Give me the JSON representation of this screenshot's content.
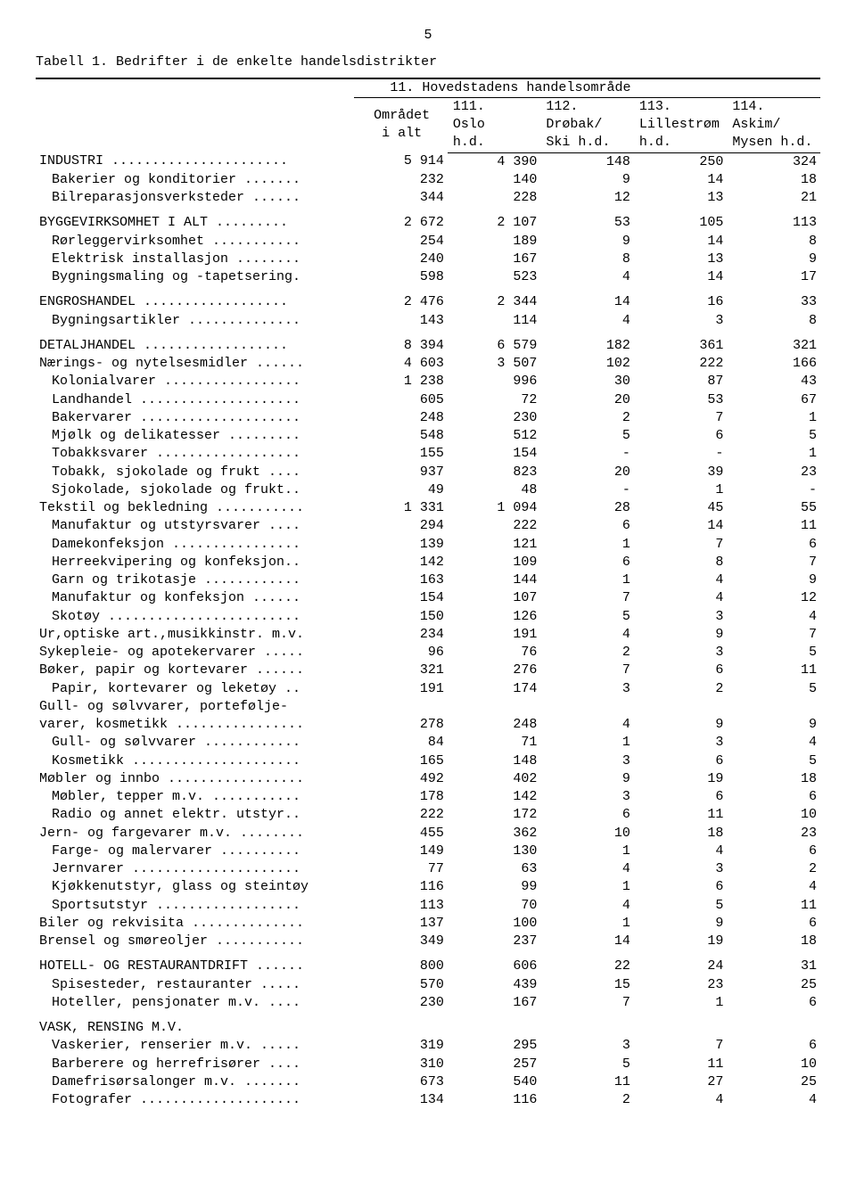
{
  "page_number": "5",
  "title": "Tabell 1.  Bedrifter i de enkelte handelsdistrikter",
  "header": {
    "super": "11.  Hovedstadens handelsområde",
    "col0": [
      "Området",
      "i alt"
    ],
    "col1": [
      "111.",
      "Oslo",
      "h.d."
    ],
    "col2": [
      "112.",
      "Drøbak/",
      "Ski h.d."
    ],
    "col3": [
      "113.",
      "Lillestrøm",
      "h.d."
    ],
    "col4": [
      "114.",
      "Askim/",
      "Mysen h.d."
    ]
  },
  "rows": [
    {
      "label": "INDUSTRI ......................",
      "indent": 0,
      "v": [
        "5 914",
        "4 390",
        "148",
        "250",
        "324"
      ],
      "gap": false
    },
    {
      "label": "Bakerier og konditorier .......",
      "indent": 1,
      "v": [
        "232",
        "140",
        "9",
        "14",
        "18"
      ]
    },
    {
      "label": "Bilreparasjonsverksteder ......",
      "indent": 1,
      "v": [
        "344",
        "228",
        "12",
        "13",
        "21"
      ]
    },
    {
      "label": "BYGGEVIRKSOMHET I ALT .........",
      "indent": 0,
      "v": [
        "2 672",
        "2 107",
        "53",
        "105",
        "113"
      ],
      "gap": true
    },
    {
      "label": "Rørleggervirksomhet ...........",
      "indent": 1,
      "v": [
        "254",
        "189",
        "9",
        "14",
        "8"
      ]
    },
    {
      "label": "Elektrisk installasjon ........",
      "indent": 1,
      "v": [
        "240",
        "167",
        "8",
        "13",
        "9"
      ]
    },
    {
      "label": "Bygningsmaling og -tapetsering.",
      "indent": 1,
      "v": [
        "598",
        "523",
        "4",
        "14",
        "17"
      ]
    },
    {
      "label": "ENGROSHANDEL ..................",
      "indent": 0,
      "v": [
        "2 476",
        "2 344",
        "14",
        "16",
        "33"
      ],
      "gap": true
    },
    {
      "label": "Bygningsartikler ..............",
      "indent": 1,
      "v": [
        "143",
        "114",
        "4",
        "3",
        "8"
      ]
    },
    {
      "label": "DETALJHANDEL ..................",
      "indent": 0,
      "v": [
        "8 394",
        "6 579",
        "182",
        "361",
        "321"
      ],
      "gap": true
    },
    {
      "label": "Nærings- og nytelsesmidler ......",
      "indent": 0,
      "v": [
        "4 603",
        "3 507",
        "102",
        "222",
        "166"
      ]
    },
    {
      "label": "Kolonialvarer .................",
      "indent": 1,
      "v": [
        "1 238",
        "996",
        "30",
        "87",
        "43"
      ]
    },
    {
      "label": "Landhandel ....................",
      "indent": 1,
      "v": [
        "605",
        "72",
        "20",
        "53",
        "67"
      ]
    },
    {
      "label": "Bakervarer ....................",
      "indent": 1,
      "v": [
        "248",
        "230",
        "2",
        "7",
        "1"
      ]
    },
    {
      "label": "Mjølk og delikatesser .........",
      "indent": 1,
      "v": [
        "548",
        "512",
        "5",
        "6",
        "5"
      ]
    },
    {
      "label": "Tobakksvarer ..................",
      "indent": 1,
      "v": [
        "155",
        "154",
        "-",
        "-",
        "1"
      ]
    },
    {
      "label": "Tobakk, sjokolade og frukt ....",
      "indent": 1,
      "v": [
        "937",
        "823",
        "20",
        "39",
        "23"
      ]
    },
    {
      "label": "Sjokolade, sjokolade og frukt..",
      "indent": 1,
      "v": [
        "49",
        "48",
        "-",
        "1",
        "-"
      ]
    },
    {
      "label": "Tekstil og bekledning ...........",
      "indent": 0,
      "v": [
        "1 331",
        "1 094",
        "28",
        "45",
        "55"
      ]
    },
    {
      "label": "Manufaktur og utstyrsvarer ....",
      "indent": 1,
      "v": [
        "294",
        "222",
        "6",
        "14",
        "11"
      ]
    },
    {
      "label": "Damekonfeksjon ................",
      "indent": 1,
      "v": [
        "139",
        "121",
        "1",
        "7",
        "6"
      ]
    },
    {
      "label": "Herreekvipering og konfeksjon..",
      "indent": 1,
      "v": [
        "142",
        "109",
        "6",
        "8",
        "7"
      ]
    },
    {
      "label": "Garn og trikotasje ............",
      "indent": 1,
      "v": [
        "163",
        "144",
        "1",
        "4",
        "9"
      ]
    },
    {
      "label": "Manufaktur og konfeksjon ......",
      "indent": 1,
      "v": [
        "154",
        "107",
        "7",
        "4",
        "12"
      ]
    },
    {
      "label": "Skotøy ........................",
      "indent": 1,
      "v": [
        "150",
        "126",
        "5",
        "3",
        "4"
      ]
    },
    {
      "label": "Ur,optiske art.,musikkinstr. m.v.",
      "indent": 0,
      "v": [
        "234",
        "191",
        "4",
        "9",
        "7"
      ]
    },
    {
      "label": "Sykepleie- og apotekervarer .....",
      "indent": 0,
      "v": [
        "96",
        "76",
        "2",
        "3",
        "5"
      ]
    },
    {
      "label": "Bøker, papir og kortevarer ......",
      "indent": 0,
      "v": [
        "321",
        "276",
        "7",
        "6",
        "11"
      ]
    },
    {
      "label": "Papir, kortevarer og leketøy ..",
      "indent": 1,
      "v": [
        "191",
        "174",
        "3",
        "2",
        "5"
      ]
    },
    {
      "label": "Gull- og sølvvarer, portefølje-",
      "indent": 0,
      "v": [
        "",
        "",
        "",
        "",
        ""
      ]
    },
    {
      "label": "varer, kosmetikk ................",
      "indent": 0,
      "v": [
        "278",
        "248",
        "4",
        "9",
        "9"
      ]
    },
    {
      "label": "Gull- og sølvvarer ............",
      "indent": 1,
      "v": [
        "84",
        "71",
        "1",
        "3",
        "4"
      ]
    },
    {
      "label": "Kosmetikk .....................",
      "indent": 1,
      "v": [
        "165",
        "148",
        "3",
        "6",
        "5"
      ]
    },
    {
      "label": "Møbler og innbo .................",
      "indent": 0,
      "v": [
        "492",
        "402",
        "9",
        "19",
        "18"
      ]
    },
    {
      "label": "Møbler, tepper m.v. ...........",
      "indent": 1,
      "v": [
        "178",
        "142",
        "3",
        "6",
        "6"
      ]
    },
    {
      "label": "Radio og annet elektr. utstyr..",
      "indent": 1,
      "v": [
        "222",
        "172",
        "6",
        "11",
        "10"
      ]
    },
    {
      "label": "Jern- og fargevarer m.v. ........",
      "indent": 0,
      "v": [
        "455",
        "362",
        "10",
        "18",
        "23"
      ]
    },
    {
      "label": "Farge- og malervarer ..........",
      "indent": 1,
      "v": [
        "149",
        "130",
        "1",
        "4",
        "6"
      ]
    },
    {
      "label": "Jernvarer .....................",
      "indent": 1,
      "v": [
        "77",
        "63",
        "4",
        "3",
        "2"
      ]
    },
    {
      "label": "Kjøkkenutstyr, glass og steintøy",
      "indent": 1,
      "v": [
        "116",
        "99",
        "1",
        "6",
        "4"
      ]
    },
    {
      "label": "Sportsutstyr ..................",
      "indent": 1,
      "v": [
        "113",
        "70",
        "4",
        "5",
        "11"
      ]
    },
    {
      "label": "Biler og rekvisita ..............",
      "indent": 0,
      "v": [
        "137",
        "100",
        "1",
        "9",
        "6"
      ]
    },
    {
      "label": "Brensel og smøreoljer ...........",
      "indent": 0,
      "v": [
        "349",
        "237",
        "14",
        "19",
        "18"
      ]
    },
    {
      "label": "HOTELL- OG RESTAURANTDRIFT ......",
      "indent": 0,
      "v": [
        "800",
        "606",
        "22",
        "24",
        "31"
      ],
      "gap": true
    },
    {
      "label": "Spisesteder, restauranter .....",
      "indent": 1,
      "v": [
        "570",
        "439",
        "15",
        "23",
        "25"
      ]
    },
    {
      "label": "Hoteller, pensjonater m.v. ....",
      "indent": 1,
      "v": [
        "230",
        "167",
        "7",
        "1",
        "6"
      ]
    },
    {
      "label": "VASK, RENSING M.V.",
      "indent": 0,
      "v": [
        "",
        "",
        "",
        "",
        ""
      ],
      "gap": true
    },
    {
      "label": "Vaskerier, renserier m.v. .....",
      "indent": 1,
      "v": [
        "319",
        "295",
        "3",
        "7",
        "6"
      ]
    },
    {
      "label": "Barberere og herrefrisører ....",
      "indent": 1,
      "v": [
        "310",
        "257",
        "5",
        "11",
        "10"
      ]
    },
    {
      "label": "Damefrisørsalonger m.v. .......",
      "indent": 1,
      "v": [
        "673",
        "540",
        "11",
        "27",
        "25"
      ]
    },
    {
      "label": "Fotografer ....................",
      "indent": 1,
      "v": [
        "134",
        "116",
        "2",
        "4",
        "4"
      ]
    }
  ]
}
